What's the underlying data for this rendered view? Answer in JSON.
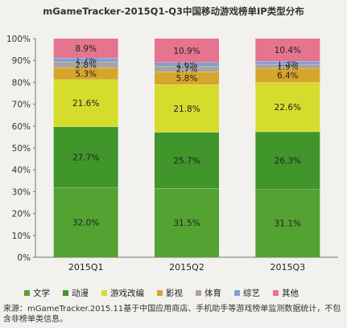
{
  "chart_data": {
    "type": "bar",
    "stacked": true,
    "title": "mGameTracker-2015Q1-Q3中国移动游戏榜单IP类型分布",
    "categories": [
      "2015Q1",
      "2015Q2",
      "2015Q3"
    ],
    "yticks": [
      "0%",
      "10%",
      "20%",
      "30%",
      "40%",
      "50%",
      "60%",
      "70%",
      "80%",
      "90%",
      "100%"
    ],
    "ylim": [
      0,
      100
    ],
    "series": [
      {
        "name": "文学",
        "color": "#54a232",
        "values": [
          32.0,
          31.5,
          31.1
        ],
        "labels": [
          "32.0%",
          "31.5%",
          "31.1%"
        ]
      },
      {
        "name": "动漫",
        "color": "#40952b",
        "values": [
          27.7,
          25.7,
          26.3
        ],
        "labels": [
          "27.7%",
          "25.7%",
          "26.3%"
        ]
      },
      {
        "name": "游戏改编",
        "color": "#d6dc2c",
        "values": [
          21.6,
          21.8,
          22.6
        ],
        "labels": [
          "21.6%",
          "21.8%",
          "22.6%"
        ]
      },
      {
        "name": "影视",
        "color": "#d6a52c",
        "values": [
          5.3,
          5.8,
          6.4
        ],
        "labels": [
          "5.3%",
          "5.8%",
          "6.4%"
        ]
      },
      {
        "name": "体育",
        "color": "#a9a59d",
        "values": [
          2.8,
          2.7,
          1.9
        ],
        "labels": [
          "2.8%",
          "2.7%",
          "1.9%"
        ]
      },
      {
        "name": "综艺",
        "color": "#7e9fd0",
        "values": [
          1.7,
          1.6,
          1.3
        ],
        "labels": [
          "1.7%",
          "1.6%",
          "1.3%"
        ]
      },
      {
        "name": "其他",
        "color": "#e5748e",
        "values": [
          8.9,
          10.9,
          10.4
        ],
        "labels": [
          "8.9%",
          "10.9%",
          "10.4%"
        ]
      }
    ],
    "grid": false,
    "legend_position": "bottom"
  },
  "source_text": "来源：mGameTracker.2015.11基于中国应用商店、手机助手等游戏榜单监测数据统计，不包含非榜单类信息。"
}
